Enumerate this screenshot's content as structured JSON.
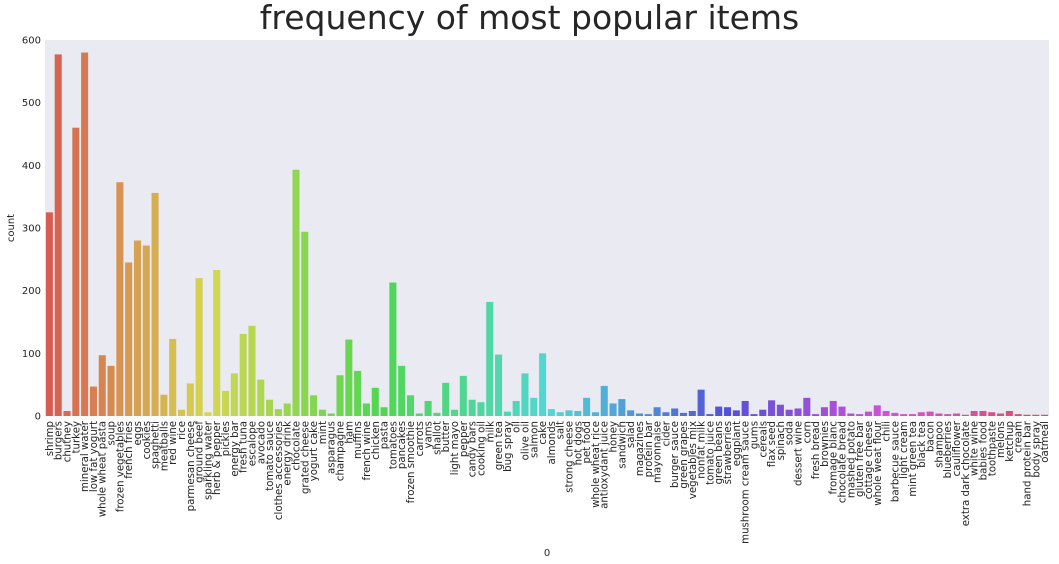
{
  "chart_data": {
    "type": "bar",
    "title": "frequency of most popular items",
    "xlabel": "0",
    "ylabel": "count",
    "ylim": [
      0,
      600
    ],
    "yticks": [
      0,
      100,
      200,
      300,
      400,
      500,
      600
    ],
    "grid": false,
    "background": "#eaeaf2",
    "categories": [
      "shrimp",
      "burgers",
      "chutney",
      "turkey",
      "mineral water",
      "low fat yogurt",
      "whole wheat pasta",
      "soup",
      "frozen vegetables",
      "french fries",
      "eggs",
      "cookies",
      "spaghetti",
      "meatballs",
      "red wine",
      "rice",
      "parmesan cheese",
      "ground beef",
      "sparkling water",
      "herb & pepper",
      "pickles",
      "energy bar",
      "fresh tuna",
      "escalope",
      "avocado",
      "tomato sauce",
      "clothes accessories",
      "energy drink",
      "chocolate",
      "grated cheese",
      "yogurt cake",
      "mint",
      "asparagus",
      "champagne",
      "ham",
      "muffins",
      "french wine",
      "chicken",
      "pasta",
      "tomatoes",
      "pancakes",
      "frozen smoothie",
      "carrots",
      "yams",
      "shallot",
      "butter",
      "light mayo",
      "pepper",
      "candy bars",
      "cooking oil",
      "milk",
      "green tea",
      "bug spray",
      "oil",
      "olive oil",
      "salmon",
      "cake",
      "almonds",
      "salt",
      "strong cheese",
      "hot dogs",
      "pet food",
      "whole wheat rice",
      "antioxydant juice",
      "honey",
      "sandwich",
      "salad",
      "magazines",
      "protein bar",
      "mayonnaise",
      "cider",
      "burger sauce",
      "green grapes",
      "vegetables mix",
      "nonfat milk",
      "tomato juice",
      "green beans",
      "strawberries",
      "eggplant",
      "mushroom cream sauce",
      "gums",
      "cereals",
      "flax seed",
      "spinach",
      "soda",
      "dessert wine",
      "corn",
      "fresh bread",
      "brownies",
      "fromage blanc",
      "chocolate bread",
      "mashed potato",
      "gluten free bar",
      "cottage cheese",
      "whole weat flour",
      "chili",
      "barbecue sauce",
      "light cream",
      "mint green tea",
      "black tea",
      "bacon",
      "shampoo",
      "blueberries",
      "cauliflower",
      "extra dark chocolate",
      "white wine",
      "babies food",
      "toothpaste",
      "melons",
      "ketchup",
      "cream",
      "hand protein bar",
      "body spray",
      "oatmeal"
    ],
    "visible_xtick_labels": [
      "shrimp",
      "burgers",
      "chutney",
      "turkey",
      "mineral water",
      "low fat yogurt",
      "whole wheat pasta",
      "soup",
      "frozen vegetables",
      "french fries",
      "eggs",
      "cookies",
      "spaghetti",
      "meatballs",
      "red wine",
      "rice",
      "parmesan cheese",
      "ground beef",
      "sparkling water",
      "herb & pepper",
      "pickles",
      "energy bar",
      "fresh tuna",
      "escalope",
      "avocado",
      "tomato sauce",
      "clothes accessories",
      "energy drink",
      "chocolate",
      "grated cheese",
      "yogurt cake",
      "mint",
      "asparagus",
      "champagne",
      "ham",
      "muffins",
      "french wine",
      "chicken",
      "pasta",
      "tomatoes",
      "pancakes",
      "frozen smoothie",
      "carrots",
      "yams",
      "shallot",
      "butter",
      "light mayo",
      "pepper",
      "candy bars",
      "cooking oil",
      "milk",
      "green tea",
      "bug spray",
      "oil",
      "olive oil",
      "salmon",
      "cake",
      "almonds",
      "salt",
      "strong cheese",
      "hot dogs",
      "pet food",
      "whole wheat rice",
      "antioxydant juice",
      "honey",
      "sandwich",
      "salad",
      "magazines",
      "protein bar",
      "mayonnaise",
      "cider",
      "burger sauce",
      "green grapes",
      "vegetables mix",
      "nonfat milk",
      "tomato juice",
      "green beans",
      "strawberries",
      "eggplant",
      "mushroom cream sauce",
      "gums",
      "cereals",
      "flax seed",
      "spinach",
      "soda",
      "dessert wine",
      "corn",
      "fresh bread",
      "brownies",
      "fromage blanc",
      "chocolate bread",
      "mashed potato",
      "gluten free bar",
      "cottage cheese",
      "whole weat flour",
      "chili",
      "barbecue sauce",
      "light cream",
      "mint green tea",
      "black tea",
      "bacon",
      "shampoo",
      "blueberries",
      "cauliflower",
      "extra dark chocolate",
      "white wine",
      "babies food",
      "toothpaste",
      "melons",
      "ketchup",
      "cream",
      "hand protein bar",
      "body spray",
      "oatmeal"
    ],
    "values": [
      325,
      577,
      8,
      460,
      580,
      47,
      97,
      80,
      373,
      245,
      280,
      272,
      356,
      34,
      123,
      10,
      52,
      220,
      6,
      233,
      40,
      68,
      131,
      144,
      58,
      26,
      11,
      20,
      393,
      294,
      33,
      10,
      4,
      65,
      122,
      72,
      20,
      45,
      14,
      213,
      80,
      33,
      4,
      24,
      5,
      53,
      10,
      64,
      26,
      22,
      182,
      98,
      7,
      24,
      68,
      29,
      100,
      11,
      6,
      9,
      8,
      29,
      6,
      48,
      20,
      27,
      9,
      4,
      3,
      14,
      6,
      12,
      5,
      8,
      42,
      3,
      15,
      14,
      9,
      24,
      3,
      10,
      25,
      18,
      10,
      12,
      29,
      3,
      14,
      24,
      15,
      4,
      3,
      7,
      17,
      8,
      5,
      3,
      3,
      6,
      7,
      4,
      3,
      4,
      2,
      8,
      8,
      6,
      4,
      8,
      3,
      2,
      2,
      2
    ]
  }
}
